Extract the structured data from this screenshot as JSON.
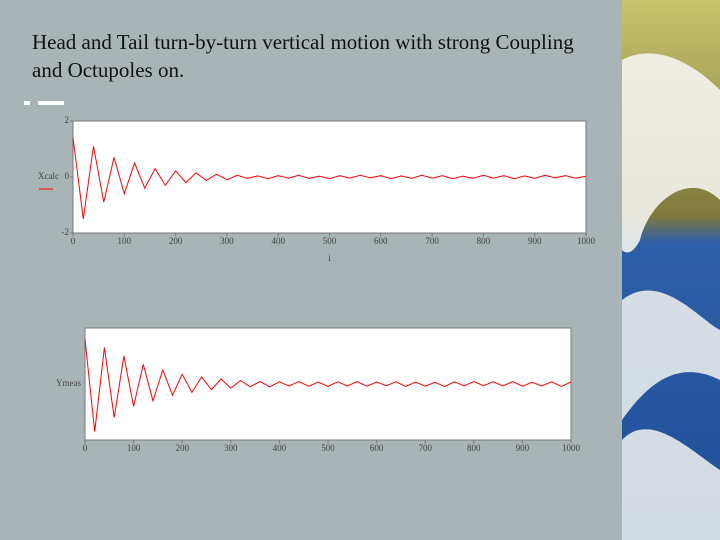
{
  "title": "Head and Tail turn-by-turn vertical motion with strong Coupling and Octupoles on.",
  "chart_data": [
    {
      "type": "line",
      "ylabel": "Xcalc",
      "xlabel": "i",
      "xlim": [
        0,
        1000
      ],
      "ylim": [
        -2,
        2
      ],
      "xticks": [
        0,
        100,
        200,
        300,
        400,
        500,
        600,
        700,
        800,
        900,
        1000
      ],
      "yticks": [
        -2,
        0,
        2
      ],
      "x": [
        0,
        20,
        40,
        60,
        80,
        100,
        120,
        140,
        160,
        180,
        200,
        220,
        240,
        260,
        280,
        300,
        320,
        340,
        360,
        380,
        400,
        420,
        440,
        460,
        480,
        500,
        520,
        540,
        560,
        580,
        600,
        620,
        640,
        660,
        680,
        700,
        720,
        740,
        760,
        780,
        800,
        820,
        840,
        860,
        880,
        900,
        920,
        940,
        960,
        980,
        1000
      ],
      "series": [
        {
          "name": "Xcalc",
          "color": "#ff0000",
          "values": [
            1.4,
            -1.5,
            1.1,
            -0.9,
            0.7,
            -0.6,
            0.5,
            -0.4,
            0.3,
            -0.3,
            0.22,
            -0.2,
            0.15,
            -0.12,
            0.1,
            -0.1,
            0.06,
            -0.05,
            0.04,
            -0.06,
            0.05,
            -0.04,
            0.06,
            -0.05,
            0.03,
            -0.06,
            0.05,
            -0.04,
            0.06,
            -0.03,
            0.05,
            -0.06,
            0.04,
            -0.05,
            0.06,
            -0.04,
            0.05,
            -0.06,
            0.03,
            -0.05,
            0.06,
            -0.04,
            0.05,
            -0.06,
            0.04,
            -0.05,
            0.06,
            -0.03,
            0.05,
            -0.04,
            0.03
          ]
        }
      ]
    },
    {
      "type": "line",
      "ylabel": "Ymeas",
      "xlim": [
        0,
        1000
      ],
      "ylim": [
        -2,
        2
      ],
      "xticks": [
        0,
        100,
        200,
        300,
        400,
        500,
        600,
        700,
        800,
        900,
        1000
      ],
      "x": [
        0,
        20,
        40,
        60,
        80,
        100,
        120,
        140,
        160,
        180,
        200,
        220,
        240,
        260,
        280,
        300,
        320,
        340,
        360,
        380,
        400,
        420,
        440,
        460,
        480,
        500,
        520,
        540,
        560,
        580,
        600,
        620,
        640,
        660,
        680,
        700,
        720,
        740,
        760,
        780,
        800,
        820,
        840,
        860,
        880,
        900,
        920,
        940,
        960,
        980,
        1000
      ],
      "series": [
        {
          "name": "Ymeas",
          "color": "#ff0000",
          "values": [
            1.6,
            -1.7,
            1.3,
            -1.2,
            1.0,
            -0.8,
            0.7,
            -0.6,
            0.5,
            -0.4,
            0.35,
            -0.3,
            0.25,
            -0.2,
            0.18,
            -0.15,
            0.12,
            -0.1,
            0.09,
            -0.1,
            0.08,
            -0.07,
            0.09,
            -0.08,
            0.07,
            -0.09,
            0.08,
            -0.07,
            0.09,
            -0.08,
            0.07,
            -0.06,
            0.08,
            -0.09,
            0.07,
            -0.08,
            0.06,
            -0.09,
            0.08,
            -0.07,
            0.09,
            -0.06,
            0.08,
            -0.07,
            0.09,
            -0.08,
            0.06,
            -0.07,
            0.08,
            -0.09,
            0.07
          ]
        }
      ]
    }
  ]
}
